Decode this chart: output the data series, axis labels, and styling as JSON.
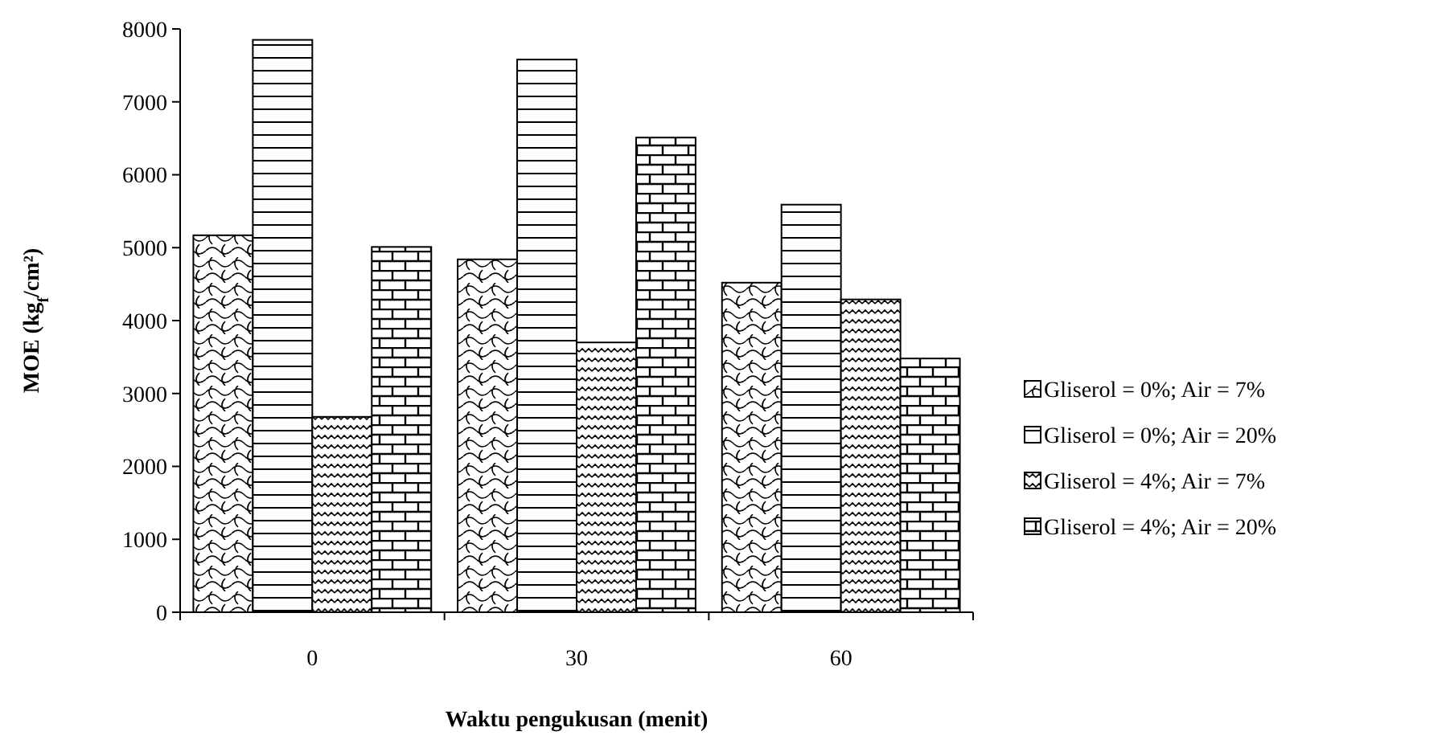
{
  "chart_data": {
    "type": "bar",
    "xlabel": "Waktu pengukusan (menit)",
    "ylabel": "MOE (kg$_{f}$/cm²)",
    "categories": [
      "0",
      "30",
      "60"
    ],
    "ylim": [
      0,
      8000
    ],
    "yticks": [
      0,
      1000,
      2000,
      3000,
      4000,
      5000,
      6000,
      7000,
      8000
    ],
    "legend": "right",
    "grid": false,
    "series": [
      {
        "name": "Gliserol = 0%; Air = 7%",
        "color": "#000000",
        "values": [
          5170,
          4840,
          4520
        ]
      },
      {
        "name": "Gliserol = 0%; Air = 20%",
        "color": "#000000",
        "values": [
          7850,
          7580,
          5590
        ]
      },
      {
        "name": "Gliserol = 4%; Air = 7%",
        "color": "#000000",
        "values": [
          2680,
          3700,
          4290
        ]
      },
      {
        "name": "Gliserol = 4%; Air = 20%",
        "color": "#000000",
        "values": [
          5010,
          6510,
          3480
        ]
      }
    ]
  }
}
